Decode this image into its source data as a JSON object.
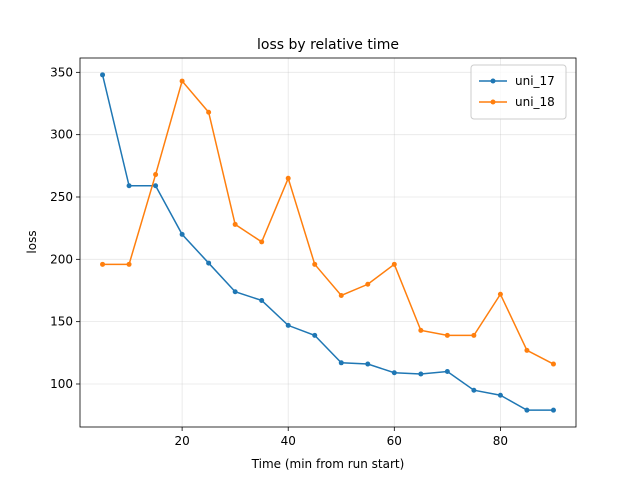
{
  "chart_data": {
    "type": "line",
    "title": "loss by relative time",
    "x_label": "Time (min from run start)",
    "y_label": "loss",
    "x": [
      5,
      10,
      15,
      20,
      25,
      30,
      35,
      40,
      45,
      50,
      55,
      60,
      65,
      70,
      75,
      80,
      85,
      90
    ],
    "series": [
      {
        "name": "uni_17",
        "color": "#1f77b4",
        "values": [
          348,
          259,
          259,
          220,
          197,
          174,
          167,
          147,
          139,
          117,
          116,
          109,
          108,
          110,
          95,
          91,
          79,
          79
        ]
      },
      {
        "name": "uni_18",
        "color": "#ff7f0e",
        "values": [
          196,
          196,
          268,
          343,
          318,
          228,
          214,
          265,
          196,
          171,
          180,
          196,
          143,
          139,
          139,
          172,
          127,
          116
        ]
      }
    ],
    "xlim": [
      0.75,
      94.25
    ],
    "ylim": [
      65.5,
      361.5
    ],
    "xticks": [
      20,
      40,
      60,
      80
    ],
    "yticks": [
      100,
      150,
      200,
      250,
      300,
      350
    ],
    "grid": true,
    "legend": "upper-right"
  }
}
